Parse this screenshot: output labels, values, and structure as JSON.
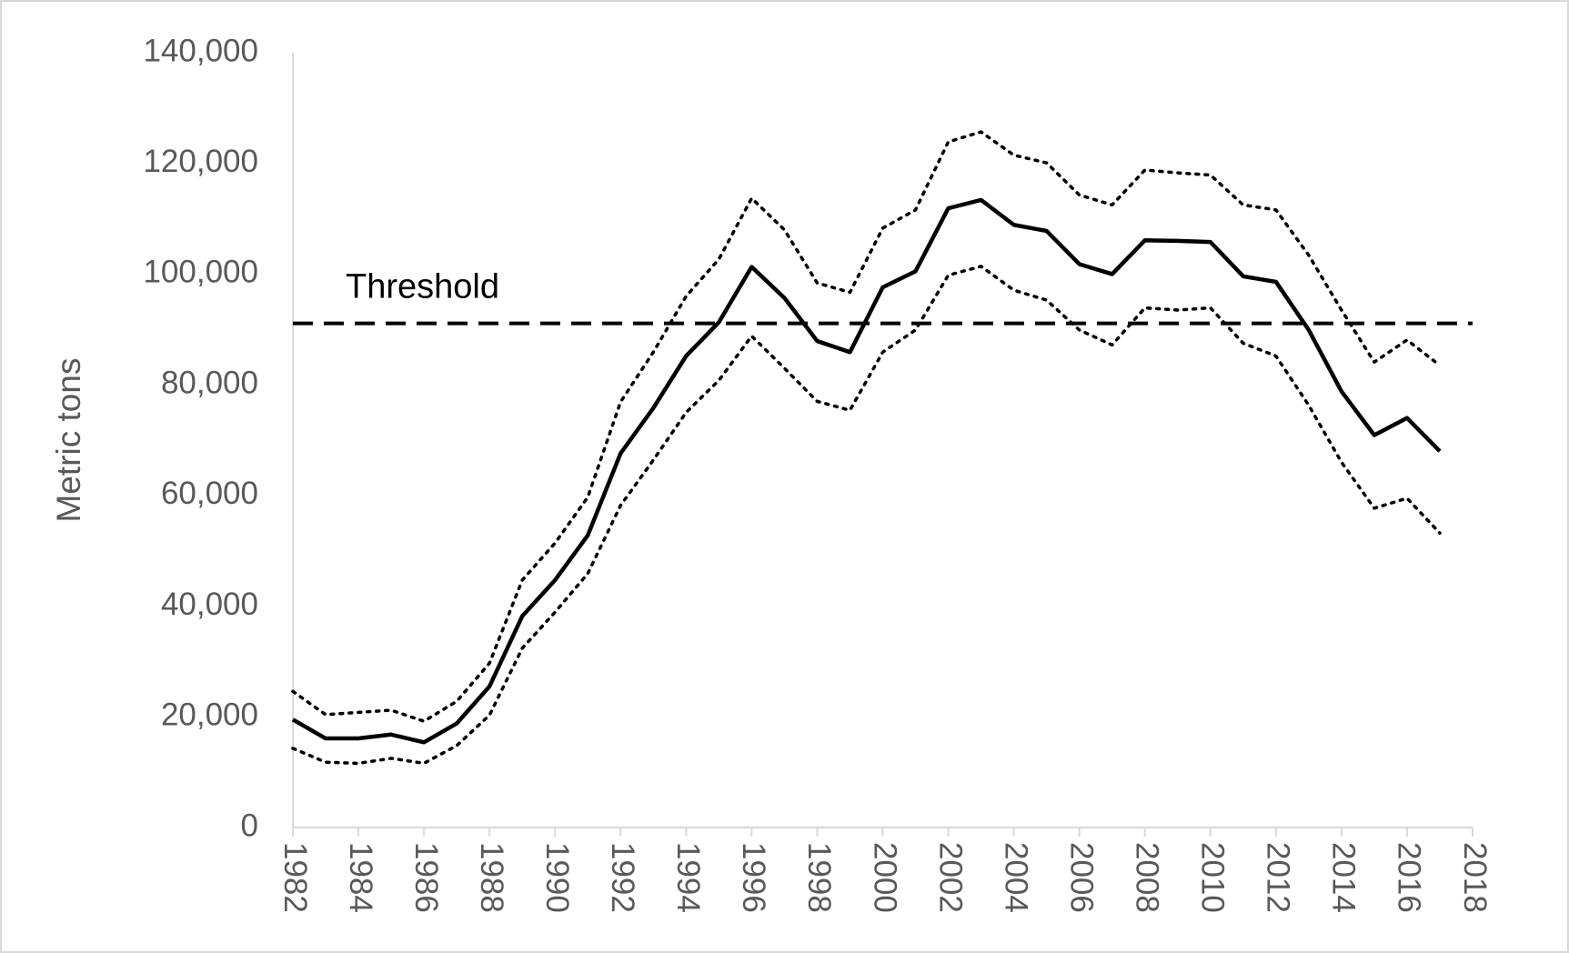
{
  "chart_data": {
    "type": "line",
    "y_label": "Metric tons",
    "x": [
      1982,
      1983,
      1984,
      1985,
      1986,
      1987,
      1988,
      1989,
      1990,
      1991,
      1992,
      1993,
      1994,
      1995,
      1996,
      1997,
      1998,
      1999,
      2000,
      2001,
      2002,
      2003,
      2004,
      2005,
      2006,
      2007,
      2008,
      2009,
      2010,
      2011,
      2012,
      2013,
      2014,
      2015,
      2016,
      2017
    ],
    "series": [
      {
        "color": "#000000",
        "style": "solid",
        "values": [
          19500,
          16100,
          16100,
          16800,
          15400,
          18800,
          25500,
          38200,
          44700,
          52800,
          67600,
          75800,
          85200,
          91300,
          101300,
          95700,
          87900,
          85900,
          97600,
          100500,
          111900,
          113400,
          108900,
          107800,
          101800,
          100000,
          106100,
          106000,
          105800,
          99600,
          98600,
          89900,
          78800,
          70900,
          74000,
          68000
        ]
      },
      {
        "color": "#000000",
        "style": "dotted",
        "values": [
          24600,
          20400,
          20800,
          21200,
          19200,
          22800,
          29700,
          44700,
          51400,
          59700,
          76900,
          85900,
          96000,
          102700,
          113700,
          108000,
          98400,
          96700,
          108300,
          111600,
          123900,
          125700,
          121500,
          120100,
          114300,
          112500,
          118800,
          118300,
          117900,
          112500,
          111600,
          103400,
          93500,
          84100,
          88100,
          83500
        ]
      },
      {
        "color": "#000000",
        "style": "dotted",
        "values": [
          14300,
          11800,
          11600,
          12500,
          11600,
          14800,
          20300,
          32400,
          38900,
          45900,
          58200,
          66400,
          75000,
          80800,
          88800,
          83000,
          77000,
          75400,
          85900,
          89900,
          99800,
          101400,
          97100,
          95300,
          89900,
          87200,
          93900,
          93500,
          93900,
          87500,
          85200,
          76300,
          66000,
          57700,
          59500,
          53200
        ]
      }
    ],
    "threshold": {
      "value": 91100,
      "label": "Threshold",
      "color": "#000000",
      "style": "dashed"
    },
    "xlim": [
      1982,
      2018
    ],
    "xticks": [
      1982,
      1984,
      1986,
      1988,
      1990,
      1992,
      1994,
      1996,
      1998,
      2000,
      2002,
      2004,
      2006,
      2008,
      2010,
      2012,
      2014,
      2016,
      2018
    ],
    "ylim": [
      0,
      140000
    ],
    "yticks": [
      0,
      {
        "value": 20000,
        "label": "20,000"
      },
      {
        "value": 40000,
        "label": "40,000"
      },
      {
        "value": 60000,
        "label": "60,000"
      },
      {
        "value": 80000,
        "label": "80,000"
      },
      {
        "value": 100000,
        "label": "100,000"
      },
      {
        "value": 120000,
        "label": "120,000"
      },
      {
        "value": 140000,
        "label": "140,000"
      }
    ],
    "grid": false
  }
}
